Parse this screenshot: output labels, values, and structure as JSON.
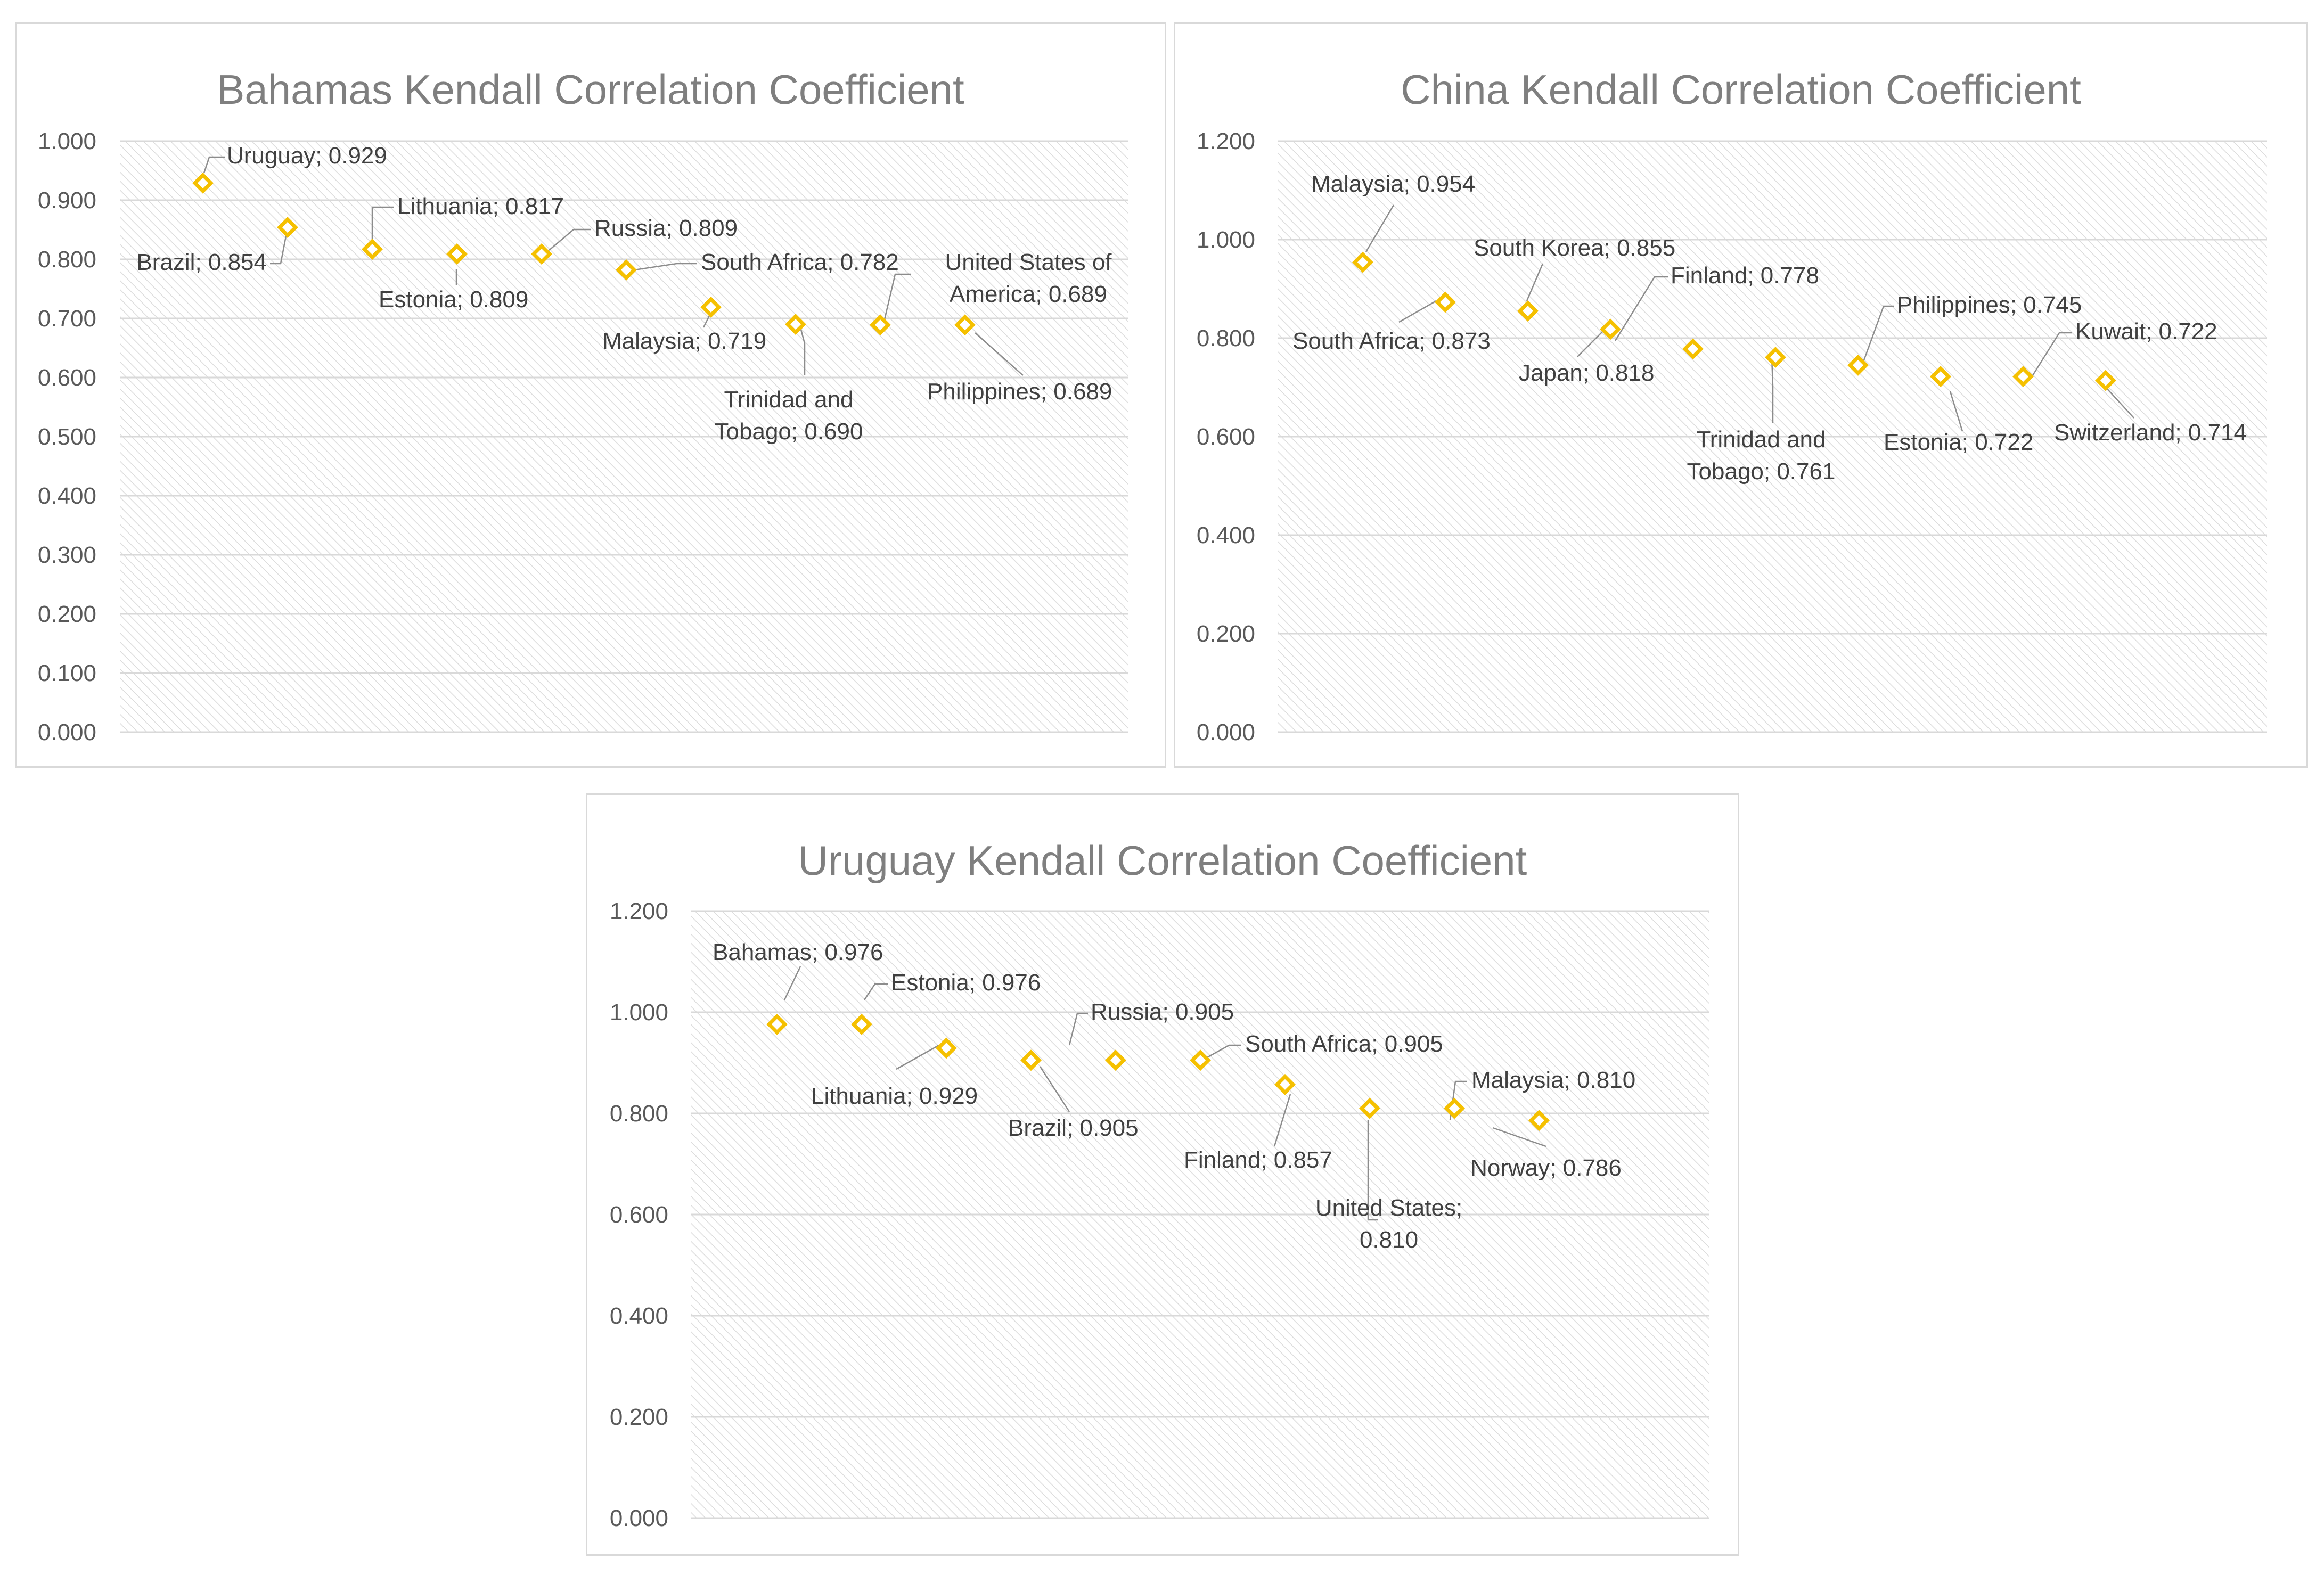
{
  "colors": {
    "marker": "#f5c000",
    "title": "#7f7f7f",
    "gridline": "#d9d9d9",
    "hatch": "#dcdcdc"
  },
  "chart_data": [
    {
      "type": "scatter",
      "title": "Bahamas Kendall Correlation Coefficient",
      "xlabel": "",
      "ylabel": "",
      "ylim": [
        0,
        1.0
      ],
      "yticks": [
        "0.000",
        "0.100",
        "0.200",
        "0.300",
        "0.400",
        "0.500",
        "0.600",
        "0.700",
        "0.800",
        "0.900",
        "1.000"
      ],
      "grid": true,
      "legend": "none",
      "points": [
        {
          "name": "Uruguay",
          "value": 0.929,
          "label": "Uruguay; 0.929"
        },
        {
          "name": "Brazil",
          "value": 0.854,
          "label": "Brazil; 0.854"
        },
        {
          "name": "Lithuania",
          "value": 0.817,
          "label": "Lithuania; 0.817"
        },
        {
          "name": "Estonia",
          "value": 0.809,
          "label": "Estonia; 0.809"
        },
        {
          "name": "Russia",
          "value": 0.809,
          "label": "Russia; 0.809"
        },
        {
          "name": "South Africa",
          "value": 0.782,
          "label": "South Africa; 0.782"
        },
        {
          "name": "Malaysia",
          "value": 0.719,
          "label": "Malaysia; 0.719"
        },
        {
          "name": "Trinidad and Tobago",
          "value": 0.69,
          "label": "Trinidad and|Tobago; 0.690"
        },
        {
          "name": "United States of America",
          "value": 0.689,
          "label": "United States of|America; 0.689"
        },
        {
          "name": "Philippines",
          "value": 0.689,
          "label": "Philippines; 0.689"
        }
      ]
    },
    {
      "type": "scatter",
      "title": "China Kendall Correlation Coefficient",
      "xlabel": "",
      "ylabel": "",
      "ylim": [
        0,
        1.2
      ],
      "yticks": [
        "0.000",
        "0.200",
        "0.400",
        "0.600",
        "0.800",
        "1.000",
        "1.200"
      ],
      "grid": true,
      "legend": "none",
      "points": [
        {
          "name": "Malaysia",
          "value": 0.954,
          "label": "Malaysia; 0.954"
        },
        {
          "name": "South Africa",
          "value": 0.873,
          "label": "South Africa; 0.873"
        },
        {
          "name": "South Korea",
          "value": 0.855,
          "label": "South Korea; 0.855"
        },
        {
          "name": "Japan",
          "value": 0.818,
          "label": "Japan; 0.818"
        },
        {
          "name": "Finland",
          "value": 0.778,
          "label": "Finland; 0.778"
        },
        {
          "name": "Trinidad and Tobago",
          "value": 0.761,
          "label": "Trinidad and|Tobago; 0.761"
        },
        {
          "name": "Philippines",
          "value": 0.745,
          "label": "Philippines; 0.745"
        },
        {
          "name": "Estonia",
          "value": 0.722,
          "label": "Estonia; 0.722"
        },
        {
          "name": "Kuwait",
          "value": 0.722,
          "label": "Kuwait; 0.722"
        },
        {
          "name": "Switzerland",
          "value": 0.714,
          "label": "Switzerland; 0.714"
        }
      ]
    },
    {
      "type": "scatter",
      "title": "Uruguay Kendall Correlation Coefficient",
      "xlabel": "",
      "ylabel": "",
      "ylim": [
        0,
        1.2
      ],
      "yticks": [
        "0.000",
        "0.200",
        "0.400",
        "0.600",
        "0.800",
        "1.000",
        "1.200"
      ],
      "grid": true,
      "legend": "none",
      "points": [
        {
          "name": "Bahamas",
          "value": 0.976,
          "label": "Bahamas; 0.976"
        },
        {
          "name": "Estonia",
          "value": 0.976,
          "label": "Estonia; 0.976"
        },
        {
          "name": "Lithuania",
          "value": 0.929,
          "label": "Lithuania; 0.929"
        },
        {
          "name": "Brazil",
          "value": 0.905,
          "label": "Brazil; 0.905"
        },
        {
          "name": "Russia",
          "value": 0.905,
          "label": "Russia; 0.905"
        },
        {
          "name": "South Africa",
          "value": 0.905,
          "label": "South Africa; 0.905"
        },
        {
          "name": "Finland",
          "value": 0.857,
          "label": "Finland; 0.857"
        },
        {
          "name": "United States",
          "value": 0.81,
          "label": "United States;|0.810"
        },
        {
          "name": "Malaysia",
          "value": 0.81,
          "label": "Malaysia; 0.810"
        },
        {
          "name": "Norway",
          "value": 0.786,
          "label": "Norway; 0.786"
        }
      ]
    }
  ]
}
